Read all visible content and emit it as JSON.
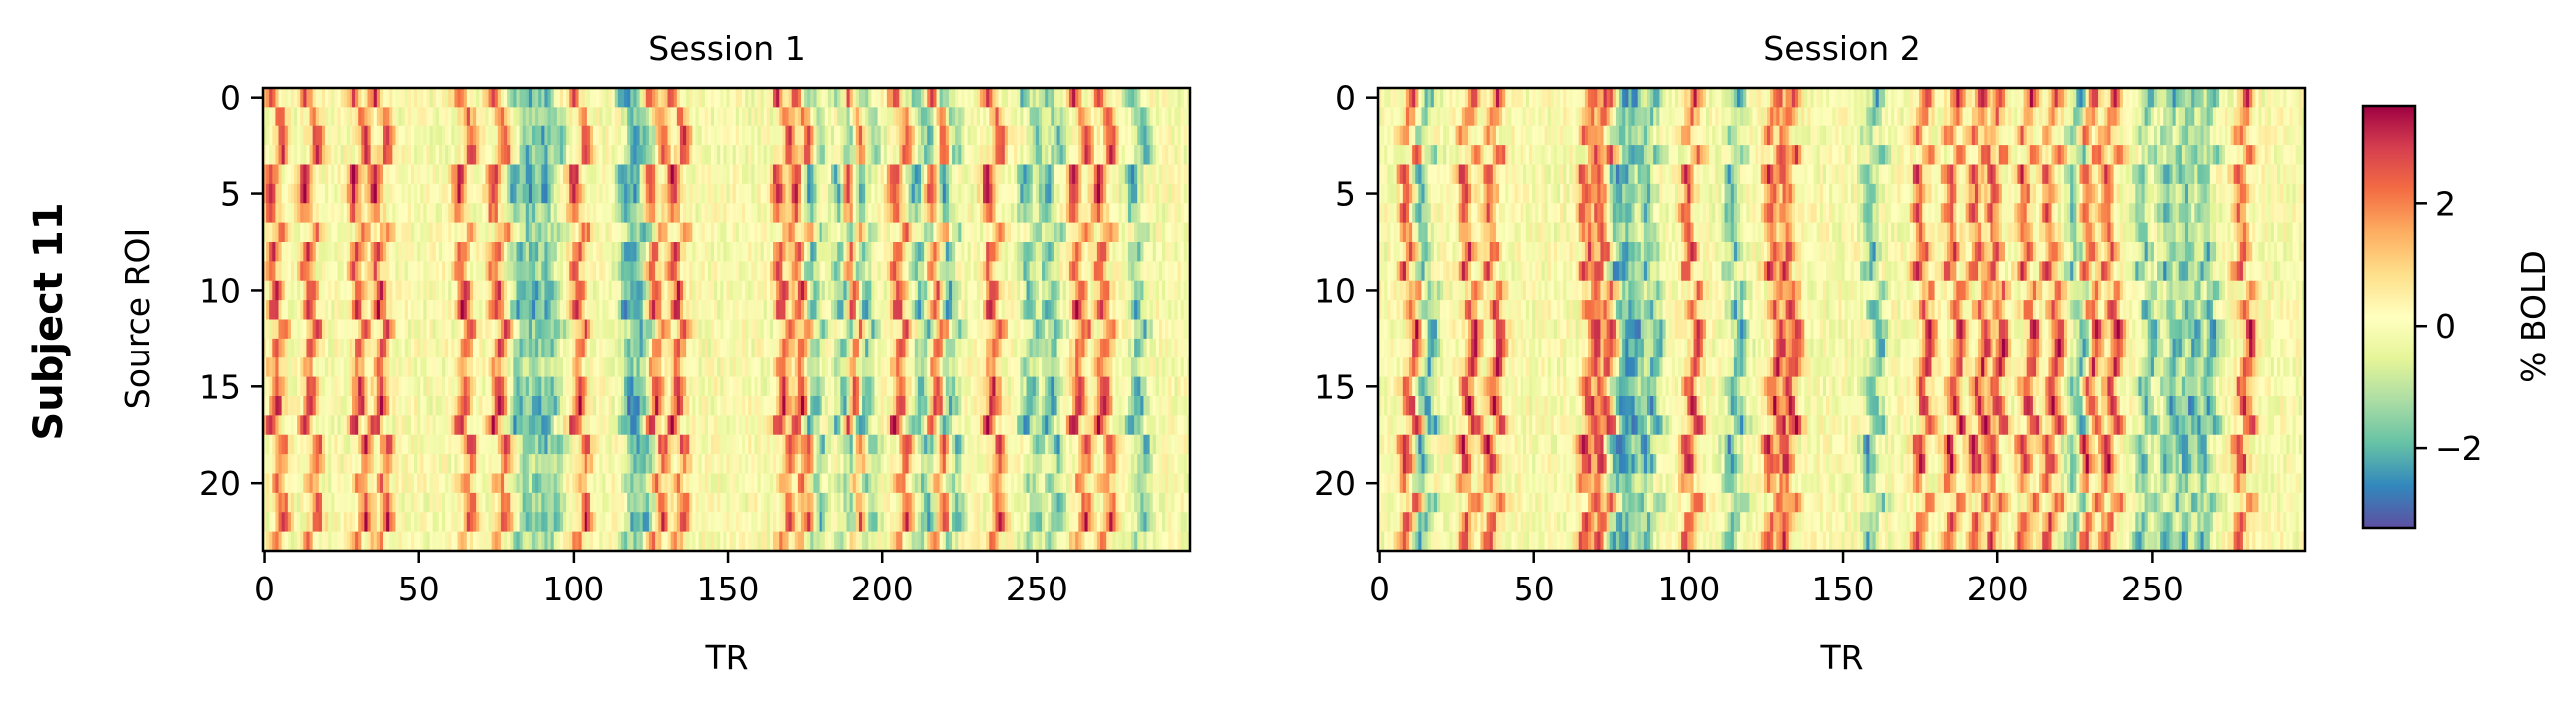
{
  "figure": {
    "row_label": "Subject 11",
    "colorbar": {
      "label": "% BOLD",
      "vmin": -3.3,
      "vmax": 3.6,
      "ticks": [
        -2,
        0,
        2
      ],
      "tick_labels": [
        "−2",
        "0",
        "2"
      ],
      "colormap": "Spectral_r",
      "stops": [
        "#5e4fa2",
        "#3288bd",
        "#66c2a5",
        "#abdda4",
        "#e6f598",
        "#ffffbf",
        "#fee08b",
        "#fdae61",
        "#f46d43",
        "#d53e4f",
        "#9e0142"
      ]
    }
  },
  "chart_data": [
    {
      "type": "heatmap",
      "title": "Session 1",
      "xlabel": "TR",
      "ylabel": "Source ROI",
      "xlim": [
        0,
        299
      ],
      "ylim": [
        23,
        0
      ],
      "n_rows": 24,
      "n_cols": 300,
      "xticks": [
        0,
        50,
        100,
        150,
        200,
        250
      ],
      "yticks": [
        0,
        5,
        10,
        15,
        20
      ],
      "value_range": [
        -3.3,
        3.6
      ],
      "positive_bands_tr": [
        4,
        15,
        31,
        38,
        65,
        76,
        102,
        127,
        134,
        168,
        174,
        191,
        206,
        218,
        236,
        264,
        272
      ],
      "negative_bands_tr": [
        83,
        88,
        93,
        118,
        122,
        178,
        188,
        195,
        213,
        222,
        248,
        255,
        283
      ]
    },
    {
      "type": "heatmap",
      "title": "Session 2",
      "xlabel": "TR",
      "ylabel": "",
      "xlim": [
        0,
        299
      ],
      "ylim": [
        23,
        0
      ],
      "n_rows": 24,
      "n_cols": 300,
      "xticks": [
        0,
        50,
        100,
        150,
        200,
        250
      ],
      "yticks": [
        0,
        5,
        10,
        15,
        20
      ],
      "value_range": [
        -3.3,
        3.6
      ],
      "positive_bands_tr": [
        10,
        29,
        37,
        68,
        73,
        101,
        128,
        133,
        176,
        186,
        194,
        200,
        210,
        218,
        230,
        237,
        280
      ],
      "negative_bands_tr": [
        15,
        78,
        82,
        88,
        115,
        160,
        226,
        248,
        256,
        262,
        268
      ]
    }
  ]
}
